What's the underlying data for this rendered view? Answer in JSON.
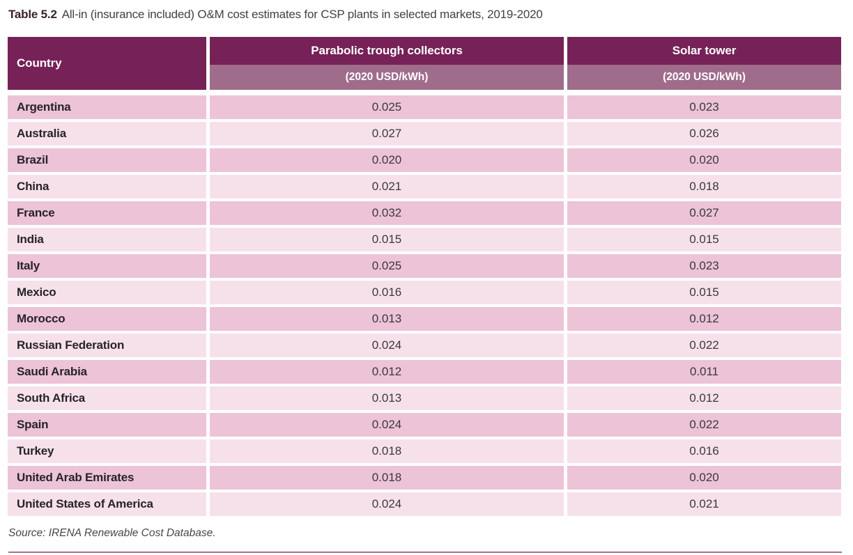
{
  "title": {
    "label": "Table 5.2",
    "text": "All-in (insurance included) O&M cost estimates for CSP plants in selected markets, 2019-2020"
  },
  "table": {
    "columns": {
      "country": "Country",
      "trough": {
        "name": "Parabolic trough collectors",
        "unit": "(2020 USD/kWh)"
      },
      "tower": {
        "name": "Solar tower",
        "unit": "(2020 USD/kWh)"
      }
    },
    "rows": [
      {
        "country": "Argentina",
        "trough": "0.025",
        "tower": "0.023"
      },
      {
        "country": "Australia",
        "trough": "0.027",
        "tower": "0.026"
      },
      {
        "country": "Brazil",
        "trough": "0.020",
        "tower": "0.020"
      },
      {
        "country": "China",
        "trough": "0.021",
        "tower": "0.018"
      },
      {
        "country": "France",
        "trough": "0.032",
        "tower": "0.027"
      },
      {
        "country": "India",
        "trough": "0.015",
        "tower": "0.015"
      },
      {
        "country": "Italy",
        "trough": "0.025",
        "tower": "0.023"
      },
      {
        "country": "Mexico",
        "trough": "0.016",
        "tower": "0.015"
      },
      {
        "country": "Morocco",
        "trough": "0.013",
        "tower": "0.012"
      },
      {
        "country": "Russian Federation",
        "trough": "0.024",
        "tower": "0.022"
      },
      {
        "country": "Saudi Arabia",
        "trough": "0.012",
        "tower": "0.011"
      },
      {
        "country": "South Africa",
        "trough": "0.013",
        "tower": "0.012"
      },
      {
        "country": "Spain",
        "trough": "0.024",
        "tower": "0.022"
      },
      {
        "country": "Turkey",
        "trough": "0.018",
        "tower": "0.016"
      },
      {
        "country": "United Arab Emirates",
        "trough": "0.018",
        "tower": "0.020"
      },
      {
        "country": "United States of America",
        "trough": "0.024",
        "tower": "0.021"
      }
    ]
  },
  "source": "Source: IRENA Renewable Cost Database.",
  "colors": {
    "header_dark": "#762157",
    "header_mauve": "#A06C8C",
    "row_dark_pink": "#ECC3D7",
    "row_light_pink": "#F6E1EB",
    "bottom_rule": "#9E7394"
  }
}
